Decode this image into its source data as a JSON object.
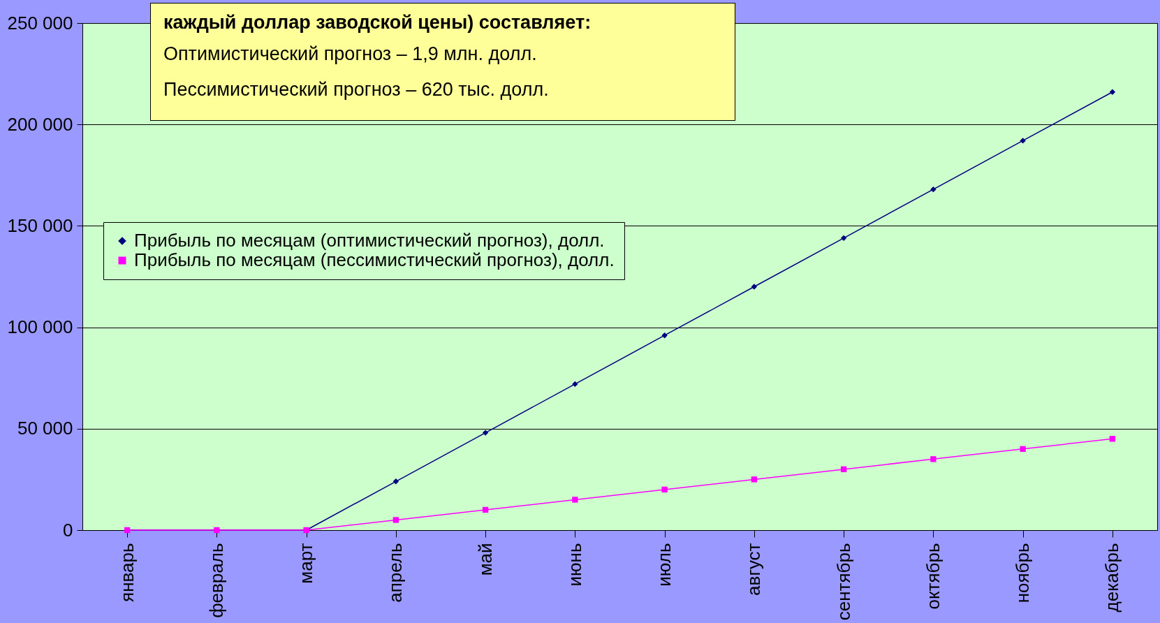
{
  "chart_data": {
    "type": "line",
    "categories": [
      "январь",
      "февраль",
      "март",
      "апрель",
      "май",
      "июнь",
      "июль",
      "август",
      "сентябрь",
      "октябрь",
      "ноябрь",
      "декабрь"
    ],
    "series": [
      {
        "name": "Прибыль  по месяцам (оптимистический прогноз), долл.",
        "color": "#000080",
        "marker": "diamond",
        "values": [
          0,
          0,
          0,
          24000,
          48000,
          72000,
          96000,
          120000,
          144000,
          168000,
          192000,
          216000
        ]
      },
      {
        "name": "Прибыль по месяцам (пессимистический прогноз), долл.",
        "color": "#ff00ff",
        "marker": "square",
        "values": [
          0,
          0,
          0,
          5000,
          10000,
          15000,
          20000,
          25000,
          30000,
          35000,
          40000,
          45000
        ]
      }
    ],
    "ylim": [
      0,
      250000
    ],
    "yticks": [
      {
        "value": 0,
        "label": "0"
      },
      {
        "value": 50000,
        "label": "50 000"
      },
      {
        "value": 100000,
        "label": "100 000"
      },
      {
        "value": 150000,
        "label": "150 000"
      },
      {
        "value": 200000,
        "label": "200 000"
      },
      {
        "value": 250000,
        "label": "250 000"
      }
    ],
    "grid": "y",
    "legend": "top left",
    "line_style": "solid",
    "annotations": [
      "каждый доллар заводской цены) составляет:",
      "Оптимистический прогноз – 1,9 млн. долл.",
      "Пессимистический прогноз – 620 тыс. долл."
    ]
  }
}
